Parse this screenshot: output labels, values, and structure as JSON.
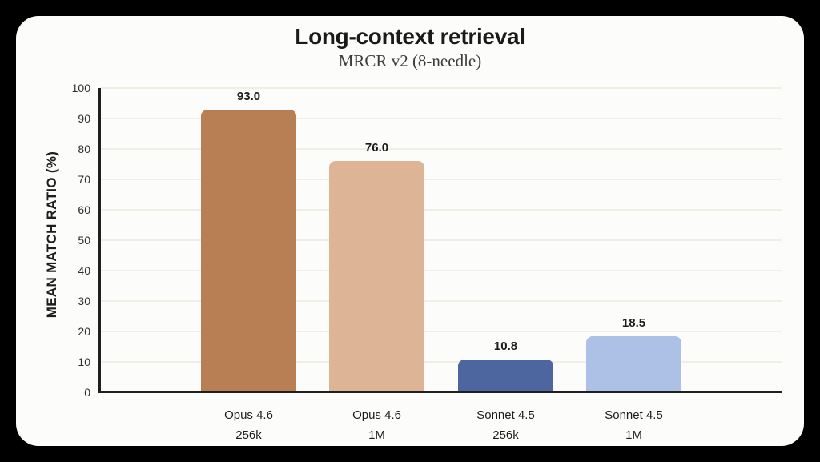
{
  "chart_data": {
    "type": "bar",
    "title": "Long-context retrieval",
    "subtitle": "MRCR v2 (8-needle)",
    "ylabel": "MEAN MATCH RATIO (%)",
    "xlabel": "",
    "ylim": [
      0,
      100
    ],
    "yticks": [
      0,
      10,
      20,
      30,
      40,
      50,
      60,
      70,
      80,
      90,
      100
    ],
    "grid": "horizontal",
    "legend": "none",
    "categories": [
      {
        "line1": "Opus 4.6",
        "line2": "256k"
      },
      {
        "line1": "Opus 4.6",
        "line2": "1M"
      },
      {
        "line1": "Sonnet 4.5",
        "line2": "256k"
      },
      {
        "line1": "Sonnet 4.5",
        "line2": "1M"
      }
    ],
    "values": [
      93.0,
      76.0,
      10.8,
      18.5
    ],
    "value_labels": [
      "93.0",
      "76.0",
      "10.8",
      "18.5"
    ],
    "bar_colors": [
      "#b87f54",
      "#ddb496",
      "#4d66a0",
      "#adc1e6"
    ]
  },
  "colors": {
    "page_background": "#000000",
    "card_background": "#fcfcfa",
    "axis": "#1f1f1f",
    "gridline": "#f0eee5",
    "title_text": "#1a1a1a",
    "subtitle_text": "#3d3d3d",
    "tick_text": "#2e2e2e"
  }
}
